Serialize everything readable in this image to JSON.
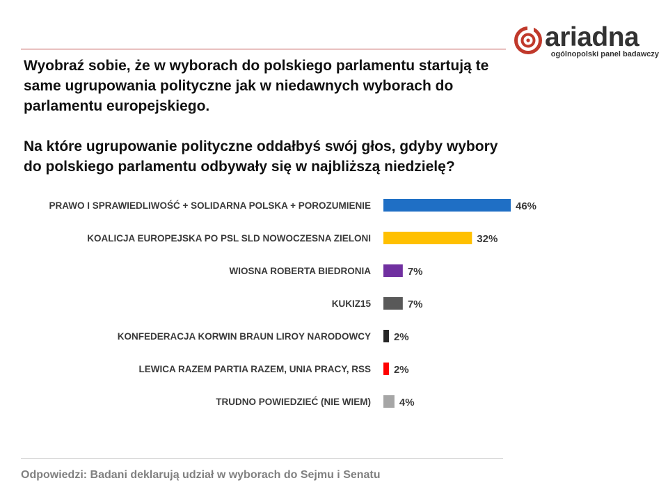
{
  "brand": {
    "name": "ariadna",
    "tagline": "ogólnopolski panel badawczy",
    "accent_color": "#c0392b",
    "logo_icon": "ariadna-spiral-icon"
  },
  "question": {
    "line1": "Wyobraź sobie, że w wyborach do polskiego parlamentu startują te same ugrupowania polityczne jak w niedawnych wyborach do parlamentu europejskiego.",
    "line2": "Na które ugrupowanie polityczne oddałbyś swój głos, gdyby wybory do polskiego parlamentu odbywały się w najbliższą niedzielę?"
  },
  "chart_data": {
    "type": "bar",
    "orientation": "horizontal",
    "categories": [
      "PRAWO I SPRAWIEDLIWOŚĆ + SOLIDARNA POLSKA + POROZUMIENIE",
      "KOALICJA EUROPEJSKA PO PSL SLD NOWOCZESNA ZIELONI",
      "WIOSNA ROBERTA BIEDRONIA",
      "KUKIZ15",
      "KONFEDERACJA KORWIN BRAUN LIROY NARODOWCY",
      "LEWICA RAZEM PARTIA RAZEM, UNIA PRACY, RSS",
      "TRUDNO POWIEDZIEĆ (NIE WIEM)"
    ],
    "values": [
      46,
      32,
      7,
      7,
      2,
      2,
      4
    ],
    "value_labels": [
      "46%",
      "32%",
      "7%",
      "7%",
      "2%",
      "2%",
      "4%"
    ],
    "colors": [
      "#1f6fc5",
      "#ffc000",
      "#7030a0",
      "#595959",
      "#262626",
      "#ff0000",
      "#a6a6a6"
    ],
    "xlim": [
      0,
      46
    ],
    "grid": false,
    "legend": "none"
  },
  "footnote": "Odpowiedzi: Badani deklarują udział w wyborach do Sejmu i Senatu"
}
